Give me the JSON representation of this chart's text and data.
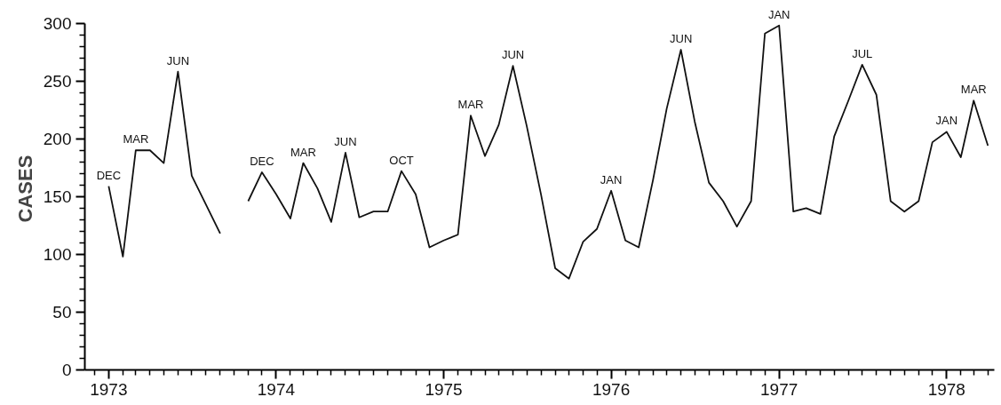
{
  "chart_data": {
    "type": "line",
    "ylabel": "CASES",
    "x": [
      "1973-01",
      "1973-02",
      "1973-03",
      "1973-04",
      "1973-05",
      "1973-06",
      "1973-07",
      "1973-08",
      "1973-09",
      "1973-10",
      "1973-11",
      "1973-12",
      "1974-01",
      "1974-02",
      "1974-03",
      "1974-04",
      "1974-05",
      "1974-06",
      "1974-07",
      "1974-08",
      "1974-09",
      "1974-10",
      "1974-11",
      "1974-12",
      "1975-01",
      "1975-02",
      "1975-03",
      "1975-04",
      "1975-05",
      "1975-06",
      "1975-07",
      "1975-08",
      "1975-09",
      "1975-10",
      "1975-11",
      "1975-12",
      "1976-01",
      "1976-02",
      "1976-03",
      "1976-04",
      "1976-05",
      "1976-06",
      "1976-07",
      "1976-08",
      "1976-09",
      "1976-10",
      "1976-11",
      "1976-12",
      "1977-01",
      "1977-02",
      "1977-03",
      "1977-04",
      "1977-05",
      "1977-06",
      "1977-07",
      "1977-08",
      "1977-09",
      "1977-10",
      "1977-11",
      "1977-12",
      "1978-01",
      "1978-02",
      "1978-03",
      "1978-04"
    ],
    "series": [
      {
        "color": "#111111",
        "values": [
          159,
          98,
          190,
          190,
          179,
          258,
          168,
          143,
          118,
          null,
          146,
          171,
          152,
          131,
          179,
          157,
          128,
          188,
          132,
          137,
          137,
          172,
          152,
          106,
          112,
          117,
          220,
          185,
          212,
          263,
          211,
          152,
          88,
          79,
          111,
          122,
          155,
          112,
          106,
          164,
          226,
          277,
          215,
          162,
          146,
          124,
          146,
          291,
          298,
          137,
          140,
          135,
          202,
          233,
          264,
          238,
          146,
          137,
          146,
          197,
          206,
          184,
          233,
          194
        ]
      }
    ],
    "xlim": [
      "1972-11-10",
      "1978-04-15"
    ],
    "xticks": [
      {
        "value": "1972-12",
        "label": null
      },
      {
        "value": "1973-01",
        "label": "1973"
      },
      {
        "value": "1973-02",
        "label": null
      },
      {
        "value": "1973-03",
        "label": null
      },
      {
        "value": "1973-04",
        "label": null
      },
      {
        "value": "1973-05",
        "label": null
      },
      {
        "value": "1973-06",
        "label": null
      },
      {
        "value": "1973-07",
        "label": null
      },
      {
        "value": "1973-08",
        "label": null
      },
      {
        "value": "1973-09",
        "label": null
      },
      {
        "value": "1973-10",
        "label": null
      },
      {
        "value": "1973-11",
        "label": null
      },
      {
        "value": "1973-12",
        "label": null
      },
      {
        "value": "1974-01",
        "label": "1974"
      },
      {
        "value": "1974-02",
        "label": null
      },
      {
        "value": "1974-03",
        "label": null
      },
      {
        "value": "1974-04",
        "label": null
      },
      {
        "value": "1974-05",
        "label": null
      },
      {
        "value": "1974-06",
        "label": null
      },
      {
        "value": "1974-07",
        "label": null
      },
      {
        "value": "1974-08",
        "label": null
      },
      {
        "value": "1974-09",
        "label": null
      },
      {
        "value": "1974-10",
        "label": null
      },
      {
        "value": "1974-11",
        "label": null
      },
      {
        "value": "1974-12",
        "label": null
      },
      {
        "value": "1975-01",
        "label": "1975"
      },
      {
        "value": "1975-02",
        "label": null
      },
      {
        "value": "1975-03",
        "label": null
      },
      {
        "value": "1975-04",
        "label": null
      },
      {
        "value": "1975-05",
        "label": null
      },
      {
        "value": "1975-06",
        "label": null
      },
      {
        "value": "1975-07",
        "label": null
      },
      {
        "value": "1975-08",
        "label": null
      },
      {
        "value": "1975-09",
        "label": null
      },
      {
        "value": "1975-10",
        "label": null
      },
      {
        "value": "1975-11",
        "label": null
      },
      {
        "value": "1975-12",
        "label": null
      },
      {
        "value": "1976-01",
        "label": "1976"
      },
      {
        "value": "1976-02",
        "label": null
      },
      {
        "value": "1976-03",
        "label": null
      },
      {
        "value": "1976-04",
        "label": null
      },
      {
        "value": "1976-05",
        "label": null
      },
      {
        "value": "1976-06",
        "label": null
      },
      {
        "value": "1976-07",
        "label": null
      },
      {
        "value": "1976-08",
        "label": null
      },
      {
        "value": "1976-09",
        "label": null
      },
      {
        "value": "1976-10",
        "label": null
      },
      {
        "value": "1976-11",
        "label": null
      },
      {
        "value": "1976-12",
        "label": null
      },
      {
        "value": "1977-01",
        "label": "1977"
      },
      {
        "value": "1977-02",
        "label": null
      },
      {
        "value": "1977-03",
        "label": null
      },
      {
        "value": "1977-04",
        "label": null
      },
      {
        "value": "1977-05",
        "label": null
      },
      {
        "value": "1977-06",
        "label": null
      },
      {
        "value": "1977-07",
        "label": null
      },
      {
        "value": "1977-08",
        "label": null
      },
      {
        "value": "1977-09",
        "label": null
      },
      {
        "value": "1977-10",
        "label": null
      },
      {
        "value": "1977-11",
        "label": null
      },
      {
        "value": "1977-12",
        "label": null
      },
      {
        "value": "1978-01",
        "label": "1978"
      },
      {
        "value": "1978-02",
        "label": null
      },
      {
        "value": "1978-03",
        "label": null
      },
      {
        "value": "1978-04",
        "label": null
      }
    ],
    "ylim": [
      0,
      300
    ],
    "yticks": [
      0,
      {
        "value": 10,
        "label": null
      },
      {
        "value": 20,
        "label": null
      },
      {
        "value": 30,
        "label": null
      },
      {
        "value": 40,
        "label": null
      },
      50,
      {
        "value": 60,
        "label": null
      },
      {
        "value": 70,
        "label": null
      },
      {
        "value": 80,
        "label": null
      },
      {
        "value": 90,
        "label": null
      },
      100,
      {
        "value": 110,
        "label": null
      },
      {
        "value": 120,
        "label": null
      },
      {
        "value": 130,
        "label": null
      },
      {
        "value": 140,
        "label": null
      },
      150,
      {
        "value": 160,
        "label": null
      },
      {
        "value": 170,
        "label": null
      },
      {
        "value": 180,
        "label": null
      },
      {
        "value": 190,
        "label": null
      },
      200,
      {
        "value": 210,
        "label": null
      },
      {
        "value": 220,
        "label": null
      },
      {
        "value": 230,
        "label": null
      },
      {
        "value": 240,
        "label": null
      },
      250,
      {
        "value": 260,
        "label": null
      },
      {
        "value": 270,
        "label": null
      },
      {
        "value": 280,
        "label": null
      },
      {
        "value": 290,
        "label": null
      },
      300
    ],
    "grid": false,
    "marker": "none",
    "line_style": "solid",
    "annotations": [
      {
        "text": "DEC",
        "x": "1973-01",
        "y": 159
      },
      {
        "text": "MAR",
        "x": "1973-03",
        "y": 190
      },
      {
        "text": "JUN",
        "x": "1973-06",
        "y": 258
      },
      {
        "text": "DEC",
        "x": "1973-12",
        "y": 171
      },
      {
        "text": "MAR",
        "x": "1974-03",
        "y": 179
      },
      {
        "text": "JUN",
        "x": "1974-06",
        "y": 188
      },
      {
        "text": "OCT",
        "x": "1974-10",
        "y": 172
      },
      {
        "text": "MAR",
        "x": "1975-03",
        "y": 220
      },
      {
        "text": "JUN",
        "x": "1975-06",
        "y": 263
      },
      {
        "text": "JAN",
        "x": "1976-01",
        "y": 155
      },
      {
        "text": "JUN",
        "x": "1976-06",
        "y": 277
      },
      {
        "text": "JAN",
        "x": "1977-01",
        "y": 298
      },
      {
        "text": "JUL",
        "x": "1977-07",
        "y": 264
      },
      {
        "text": "JAN",
        "x": "1978-01",
        "y": 206
      },
      {
        "text": "MAR",
        "x": "1978-03",
        "y": 233
      }
    ]
  }
}
